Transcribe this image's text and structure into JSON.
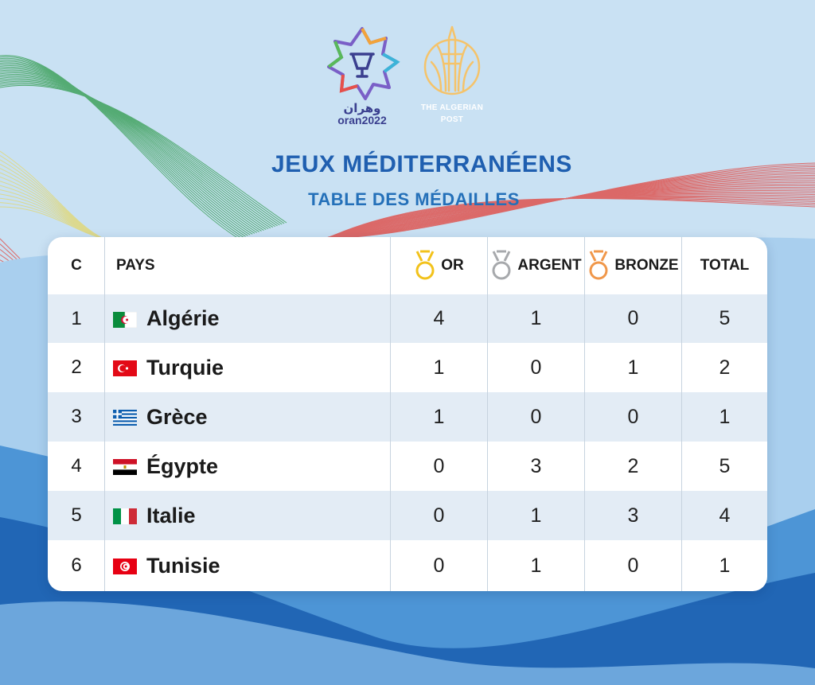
{
  "header": {
    "oran_logo_text_ar": "وهران",
    "oran_logo_text": "oran2022",
    "partner_logo_text": "THE ALGERIAN POST",
    "title": "JEUX MÉDITERRANÉENS",
    "subtitle": "TABLE DES MÉDAILLES"
  },
  "table": {
    "headers": {
      "rank": "C",
      "country": "PAYS",
      "gold": "OR",
      "silver": "ARGENT",
      "bronze": "BRONZE",
      "total": "TOTAL"
    },
    "medal_colors": {
      "gold": "#f2c21b",
      "silver": "#a7a9ac",
      "bronze": "#f0974a"
    },
    "rows": [
      {
        "rank": "1",
        "country": "Algérie",
        "flag": "algeria-flag",
        "gold": "4",
        "silver": "1",
        "bronze": "0",
        "total": "5"
      },
      {
        "rank": "2",
        "country": "Turquie",
        "flag": "turkey-flag",
        "gold": "1",
        "silver": "0",
        "bronze": "1",
        "total": "2"
      },
      {
        "rank": "3",
        "country": "Grèce",
        "flag": "greece-flag",
        "gold": "1",
        "silver": "0",
        "bronze": "0",
        "total": "1"
      },
      {
        "rank": "4",
        "country": "Égypte",
        "flag": "egypt-flag",
        "gold": "0",
        "silver": "3",
        "bronze": "2",
        "total": "5"
      },
      {
        "rank": "5",
        "country": "Italie",
        "flag": "italy-flag",
        "gold": "0",
        "silver": "1",
        "bronze": "3",
        "total": "4"
      },
      {
        "rank": "6",
        "country": "Tunisie",
        "flag": "tunisia-flag",
        "gold": "0",
        "silver": "1",
        "bronze": "0",
        "total": "1"
      }
    ]
  },
  "colors": {
    "title": "#1f5fb0",
    "background": "#c9e1f3",
    "dark_blue_wave": "#2166b5"
  }
}
